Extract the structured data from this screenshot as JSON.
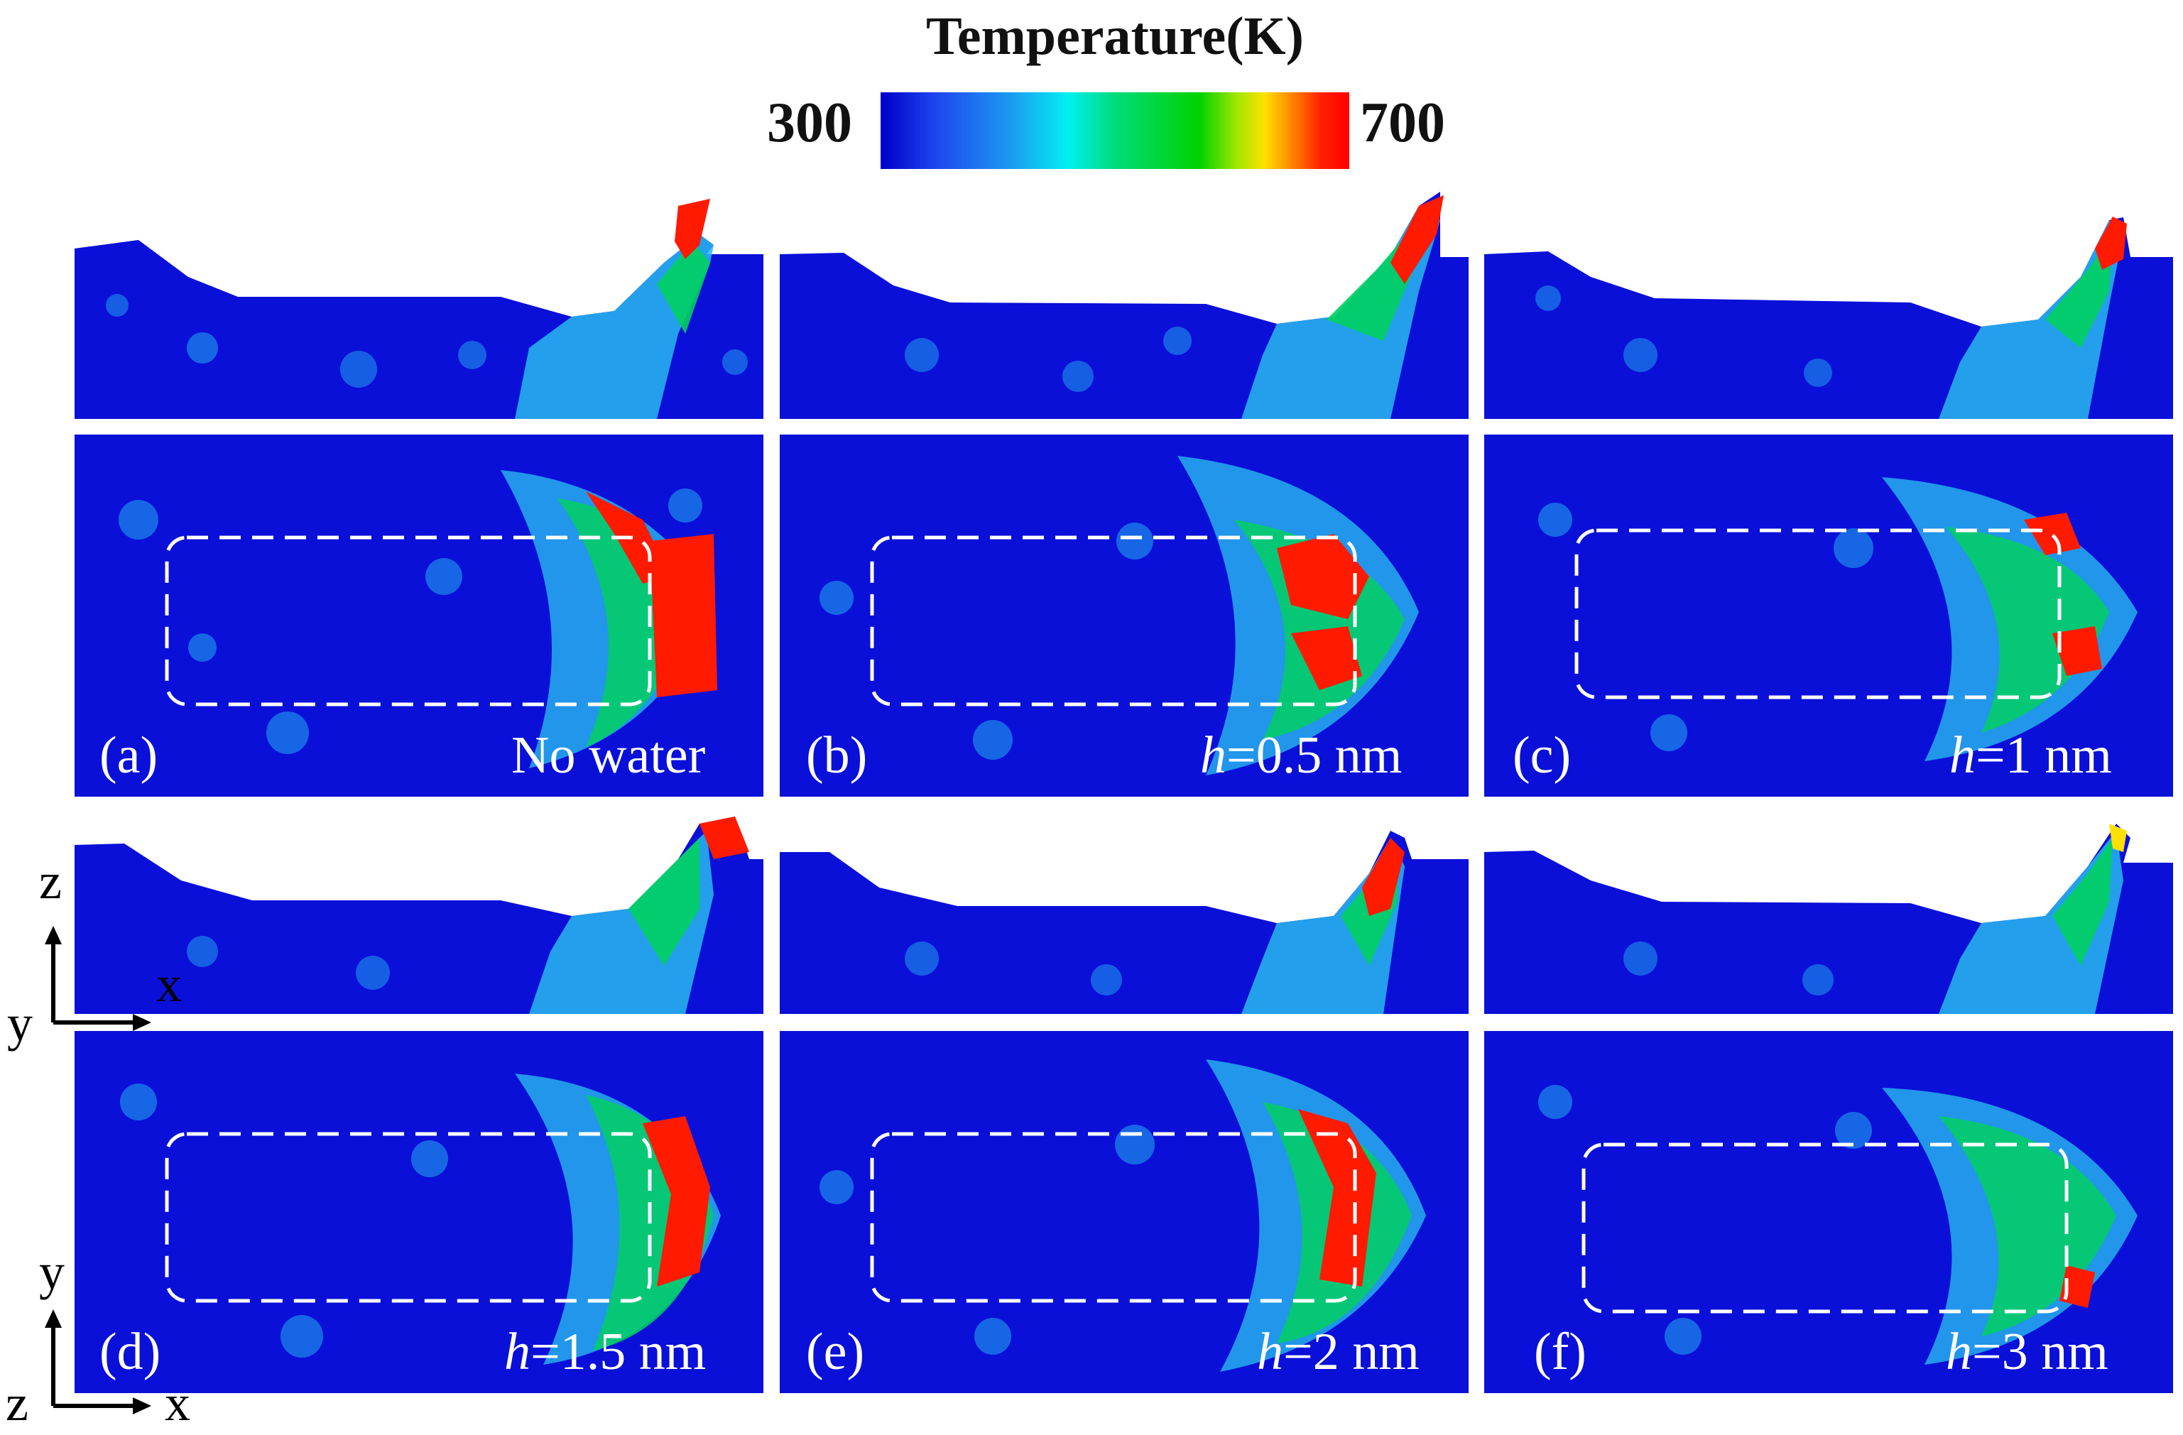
{
  "colorbar": {
    "title": "Temperature(K)",
    "min": "300",
    "max": "700",
    "colors": [
      "#0000c8",
      "#00f0f0",
      "#00d200",
      "#ffe000",
      "#ff0000"
    ]
  },
  "panels": [
    {
      "tag": "(a)",
      "condition": "No water"
    },
    {
      "tag": "(b)",
      "h_var": "h",
      "condition": "=0.5 nm"
    },
    {
      "tag": "(c)",
      "h_var": "h",
      "condition": "=1 nm"
    },
    {
      "tag": "(d)",
      "h_var": "h",
      "condition": "=1.5 nm"
    },
    {
      "tag": "(e)",
      "h_var": "h",
      "condition": "=2 nm"
    },
    {
      "tag": "(f)",
      "h_var": "h",
      "condition": "=3 nm"
    }
  ],
  "axes": {
    "side": {
      "vertical": "z",
      "horizontal": "x",
      "out": "y"
    },
    "top": {
      "vertical": "y",
      "horizontal": "x",
      "out": "z"
    }
  }
}
